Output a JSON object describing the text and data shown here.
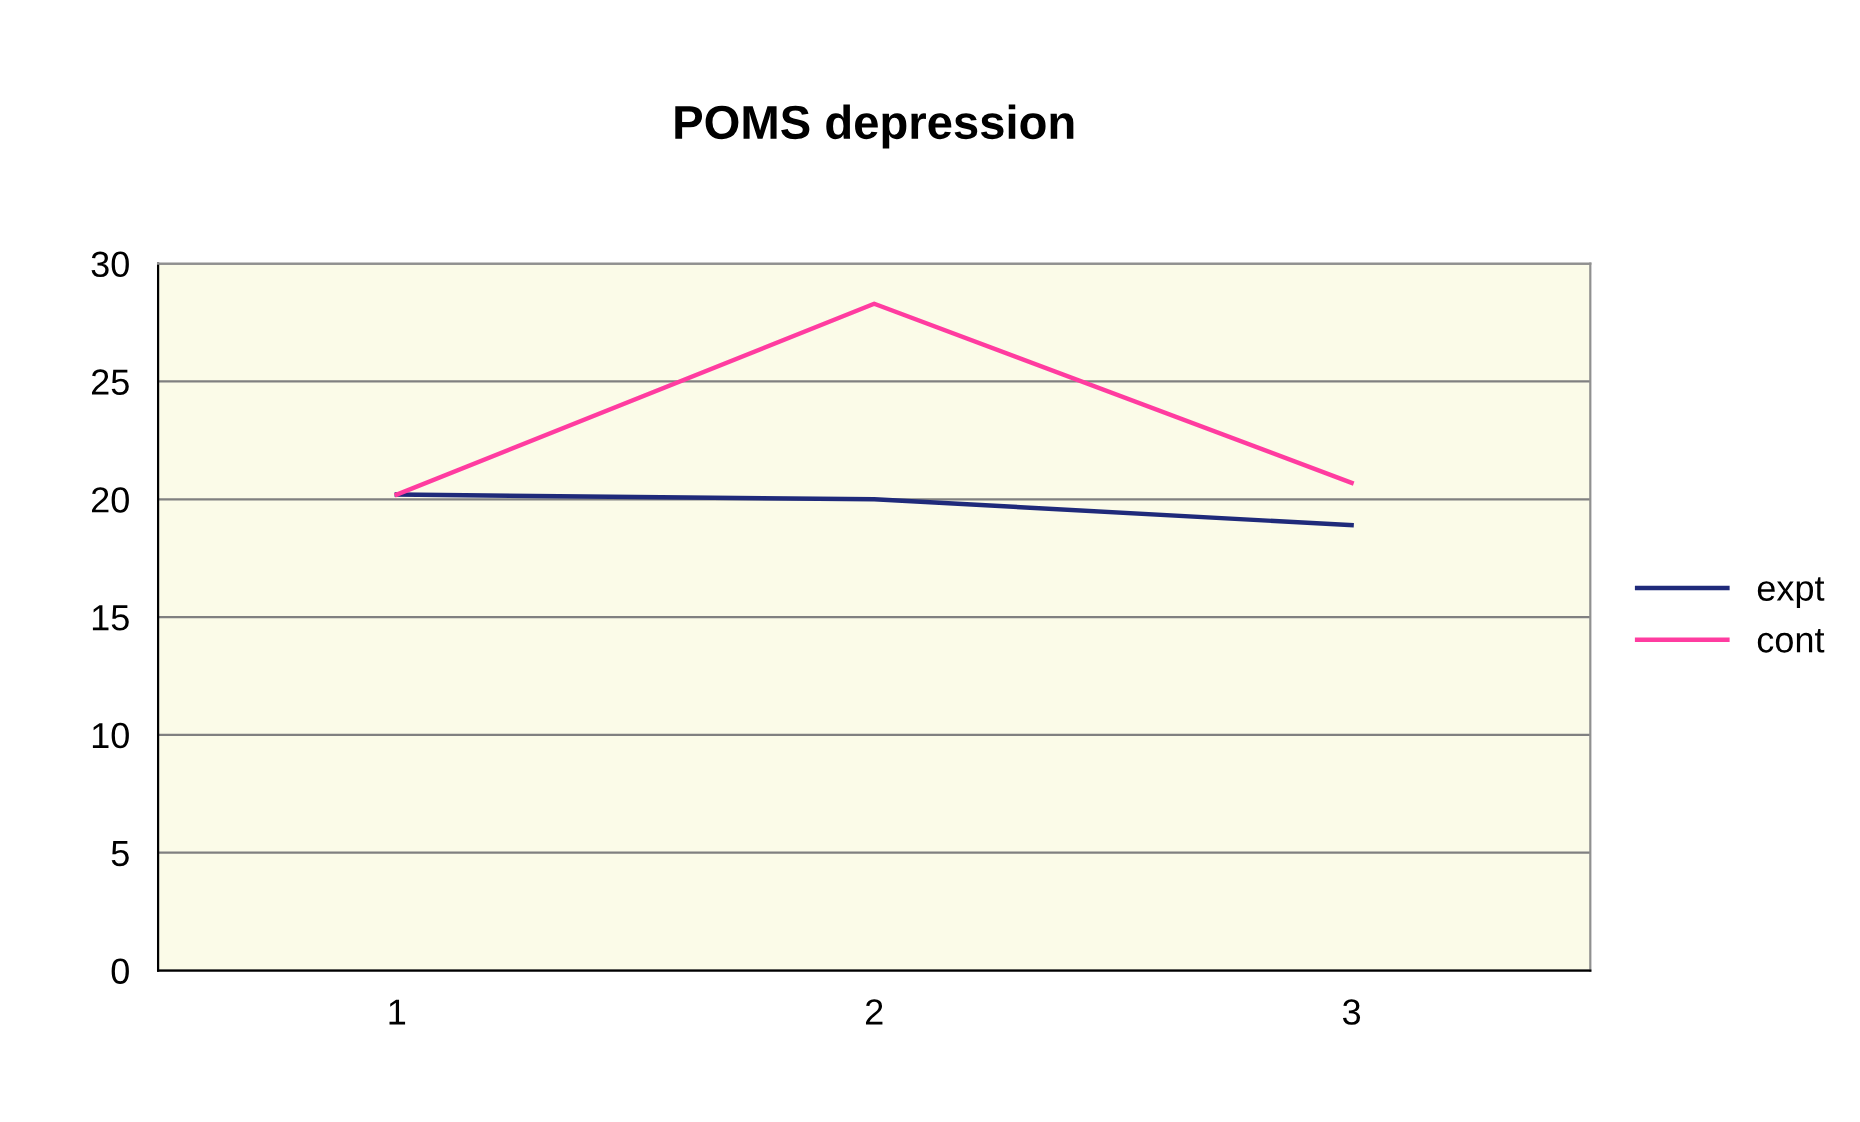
{
  "chart_data": {
    "type": "line",
    "title": "POMS depression",
    "categories": [
      "1",
      "2",
      "3"
    ],
    "series": [
      {
        "name": "expt",
        "color": "#1f2a7a",
        "values": [
          20.2,
          20.0,
          18.9
        ]
      },
      {
        "name": "cont",
        "color": "#ff3ca0",
        "values": [
          20.2,
          28.3,
          20.7
        ]
      }
    ],
    "ylim": [
      0,
      30
    ],
    "yticks": [
      0,
      5,
      10,
      15,
      20,
      25,
      30
    ],
    "grid": "y",
    "legend": "right",
    "marker": "none",
    "line_style": "solid"
  }
}
